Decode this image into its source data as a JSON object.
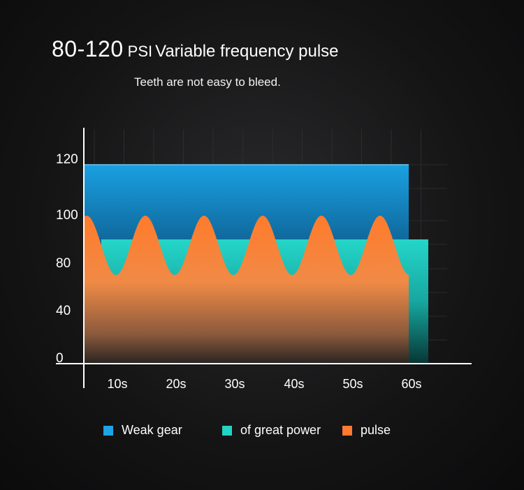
{
  "title": {
    "main": "80-120",
    "unit": "PSI",
    "rest": "Variable frequency pulse"
  },
  "subtitle": "Teeth are not easy to bleed.",
  "colors": {
    "weak": "#1ea3e6",
    "power": "#23d3c6",
    "pulse": "#ff7a2e"
  },
  "chart_data": {
    "type": "area",
    "title": "80-120 PSI Variable frequency pulse",
    "subtitle": "Teeth are not easy to bleed.",
    "xlabel": "",
    "ylabel": "",
    "x_tick_labels": [
      "10s",
      "20s",
      "30s",
      "40s",
      "50s",
      "60s"
    ],
    "y_tick_labels": [
      "0",
      "40",
      "80",
      "100",
      "120"
    ],
    "grid": true,
    "legend_position": "bottom",
    "series": [
      {
        "name": "Weak gear",
        "color": "#1ea3e6",
        "value": 120,
        "x_end": "60s"
      },
      {
        "name": "of great power",
        "color": "#23d3c6",
        "value": 100,
        "x_start": "10s"
      },
      {
        "name": "pulse",
        "color": "#ff7a2e",
        "min": 80,
        "max": 100,
        "peaks": 6
      }
    ]
  },
  "legend": [
    {
      "label": "Weak gear",
      "color": "#1ea3e6"
    },
    {
      "label": "of great power",
      "color": "#23d3c6"
    },
    {
      "label": "pulse",
      "color": "#ff7a2e"
    }
  ]
}
